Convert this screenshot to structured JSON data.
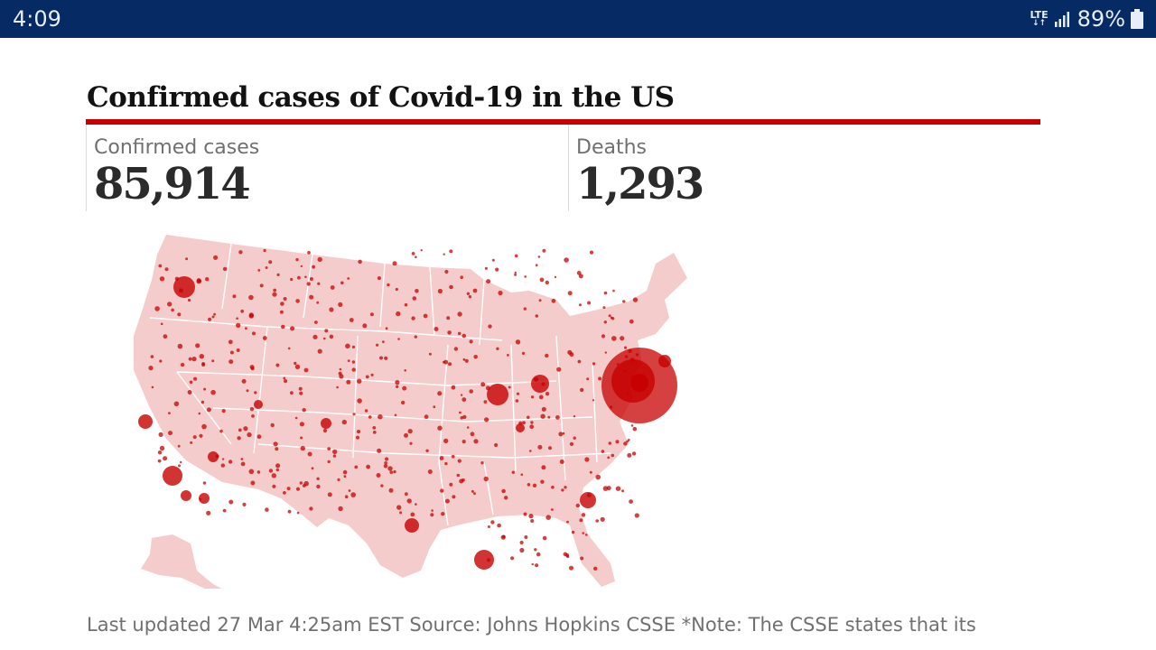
{
  "status_bar": {
    "time": "4:09",
    "network_label": "LTE",
    "battery_percent": "89%",
    "icons": [
      "lte-icon",
      "signal-icon",
      "battery-icon"
    ]
  },
  "article": {
    "headline": "Confirmed cases of Covid-19 in the US",
    "accent_color": "#c70000",
    "stats": {
      "cases_label": "Confirmed cases",
      "cases_value": "85,914",
      "deaths_label": "Deaths",
      "deaths_value": "1,293"
    },
    "map": {
      "land_color": "#f4cccc",
      "marker_color": "#c70000"
    },
    "footer": "Last updated 27 Mar 4:25am EST Source: Johns Hopkins CSSE *Note: The CSSE states that its"
  }
}
